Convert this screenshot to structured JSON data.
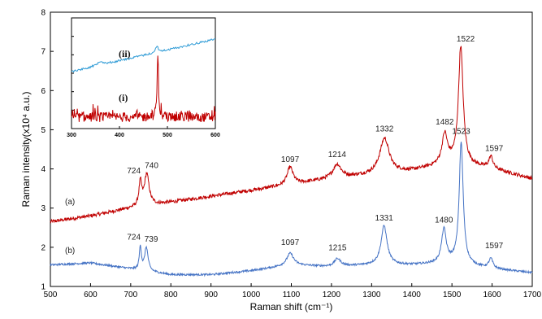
{
  "chart_data": [
    {
      "type": "line",
      "xlabel": "Raman shift (cm⁻¹)",
      "ylabel": "Raman intensity(x10⁴ a.u.)",
      "xlim": [
        500,
        1700
      ],
      "ylim": [
        1,
        8
      ],
      "xticks": [
        500,
        600,
        700,
        800,
        900,
        1000,
        1100,
        1200,
        1300,
        1400,
        1500,
        1600,
        1700
      ],
      "yticks": [
        1,
        2,
        3,
        4,
        5,
        6,
        7,
        8
      ],
      "grid": false,
      "series": [
        {
          "name": "(a)",
          "color": "#c00000",
          "baseline": [
            [
              500,
              2.65
            ],
            [
              600,
              2.8
            ],
            [
              700,
              3.0
            ],
            [
              800,
              3.15
            ],
            [
              900,
              3.3
            ],
            [
              1000,
              3.45
            ],
            [
              1100,
              3.6
            ],
            [
              1200,
              3.75
            ],
            [
              1300,
              3.85
            ],
            [
              1400,
              3.95
            ],
            [
              1500,
              4.15
            ],
            [
              1600,
              4.0
            ],
            [
              1700,
              3.75
            ]
          ],
          "peaks": [
            {
              "x": 724,
              "label": "724",
              "height": 0.6,
              "width": 4
            },
            {
              "x": 740,
              "label": "740",
              "height": 0.8,
              "width": 7
            },
            {
              "x": 1097,
              "label": "1097",
              "height": 0.45,
              "width": 9
            },
            {
              "x": 1214,
              "label": "1214",
              "height": 0.35,
              "width": 12
            },
            {
              "x": 1332,
              "label": "1332",
              "height": 0.9,
              "width": 14
            },
            {
              "x": 1482,
              "label": "1482",
              "height": 0.75,
              "width": 8
            },
            {
              "x": 1522,
              "label": "1522",
              "height": 3.0,
              "width": 7
            },
            {
              "x": 1597,
              "label": "1597",
              "height": 0.3,
              "width": 6
            }
          ]
        },
        {
          "name": "(b)",
          "color": "#4472c4",
          "baseline": [
            [
              500,
              1.55
            ],
            [
              600,
              1.6
            ],
            [
              700,
              1.45
            ],
            [
              800,
              1.3
            ],
            [
              900,
              1.3
            ],
            [
              1000,
              1.4
            ],
            [
              1100,
              1.55
            ],
            [
              1200,
              1.5
            ],
            [
              1300,
              1.55
            ],
            [
              1400,
              1.55
            ],
            [
              1500,
              1.6
            ],
            [
              1600,
              1.45
            ],
            [
              1700,
              1.35
            ]
          ],
          "peaks": [
            {
              "x": 724,
              "label": "724",
              "height": 0.6,
              "width": 3
            },
            {
              "x": 739,
              "label": "739",
              "height": 0.6,
              "width": 5
            },
            {
              "x": 1097,
              "label": "1097",
              "height": 0.3,
              "width": 10
            },
            {
              "x": 1215,
              "label": "1215",
              "height": 0.2,
              "width": 10
            },
            {
              "x": 1331,
              "label": "1331",
              "height": 1.0,
              "width": 9
            },
            {
              "x": 1480,
              "label": "1480",
              "height": 0.85,
              "width": 7
            },
            {
              "x": 1523,
              "label": "1523",
              "height": 3.1,
              "width": 6
            },
            {
              "x": 1597,
              "label": "1597",
              "height": 0.25,
              "width": 6
            }
          ]
        }
      ]
    },
    {
      "type": "line",
      "xlim": [
        300,
        600
      ],
      "xticks": [
        300,
        400,
        500,
        600
      ],
      "series": [
        {
          "name": "(ii)",
          "color": "#2e9bd6"
        },
        {
          "name": "(i)",
          "color": "#c00000"
        }
      ]
    }
  ]
}
